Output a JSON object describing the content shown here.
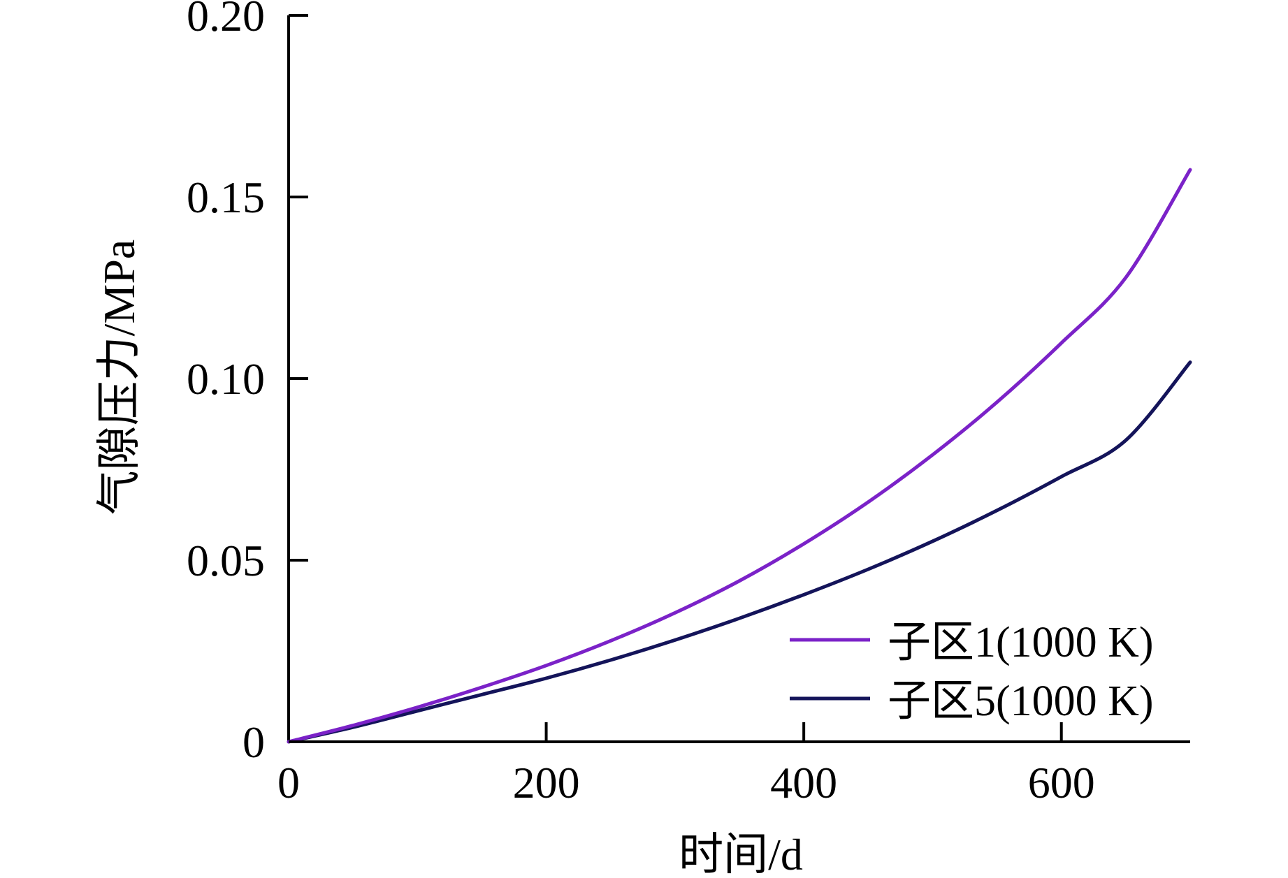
{
  "chart_data": {
    "type": "line",
    "title": "",
    "xlabel": "时间/d",
    "ylabel": "气隙压力/MPa",
    "xlim": [
      0,
      700
    ],
    "ylim": [
      0,
      0.2
    ],
    "xticks": [
      0,
      200,
      400,
      600
    ],
    "xtick_labels": [
      "0",
      "200",
      "400",
      "600"
    ],
    "yticks": [
      0,
      0.05,
      0.1,
      0.15,
      0.2
    ],
    "ytick_labels": [
      "0",
      "0.05",
      "0.10",
      "0.15",
      "0.20"
    ],
    "grid": false,
    "legend_position": "bottom-right",
    "x": [
      0,
      50,
      100,
      150,
      200,
      250,
      300,
      350,
      400,
      450,
      500,
      550,
      600,
      650,
      700
    ],
    "series": [
      {
        "name": "子区1(1000 K)",
        "color": "#7B22C8",
        "values": [
          0,
          0.0045,
          0.0095,
          0.015,
          0.021,
          0.0278,
          0.0355,
          0.0443,
          0.0545,
          0.066,
          0.079,
          0.0935,
          0.1098,
          0.1278,
          0.1575
        ]
      },
      {
        "name": "子区5(1000 K)",
        "color": "#14145A",
        "values": [
          0,
          0.004,
          0.0085,
          0.013,
          0.0175,
          0.0225,
          0.028,
          0.034,
          0.0405,
          0.0475,
          0.0552,
          0.0637,
          0.073,
          0.083,
          0.1045
        ]
      }
    ]
  }
}
